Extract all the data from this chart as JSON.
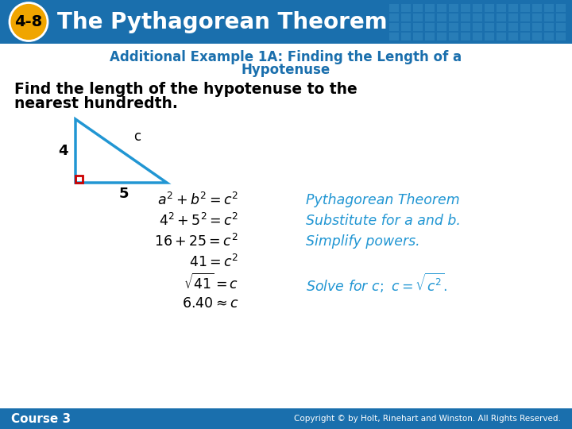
{
  "header_bg_color": "#1a6fad",
  "header_text": "The Pythagorean Theorem",
  "header_badge_text": "4-8",
  "header_badge_bg": "#f0a500",
  "header_badge_fg": "#000000",
  "header_grid_color": "#3a8fc5",
  "subtitle1": "Additional Example 1A: Finding the Length of a",
  "subtitle2": "Hypotenuse",
  "subtitle_color": "#1a6fad",
  "body_text1": "Find the length of the hypotenuse to the",
  "body_text2": "nearest hundredth.",
  "body_text_color": "#000000",
  "triangle_color": "#2196d3",
  "right_angle_color": "#cc0000",
  "label_4": "4",
  "label_5": "5",
  "label_c": "c",
  "italic_color": "#2196d3",
  "footer_bg_color": "#1a6fad",
  "footer_left": "Course 3",
  "footer_right": "Copyright © by Holt, Rinehart and Winston. All Rights Reserved.",
  "footer_text_color": "#ffffff",
  "bg_color": "#ffffff"
}
